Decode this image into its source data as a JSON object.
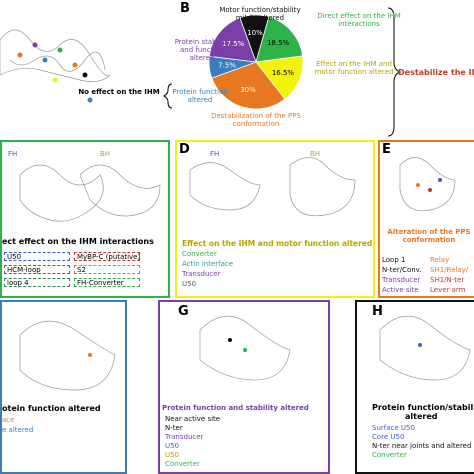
{
  "top": {
    "no_effect": "No effect on the IHM",
    "destabilize": "Destabilize the IHM"
  },
  "chart_data": {
    "type": "pie",
    "panel_label": "B",
    "categories": [
      "Motor function/stability mildly altered",
      "Direct effect on the IHM interactions",
      "Effect on the IHM and motor function altered",
      "Destabilization of the PPS conformation",
      "Protein function altered",
      "Protein stability and function altered"
    ],
    "values": [
      10,
      18.5,
      16.5,
      30,
      7.5,
      17.5
    ],
    "value_labels": [
      "10%",
      "18.5%",
      "16.5%",
      "30%",
      "7.5%",
      "17.5%"
    ],
    "colors": [
      "#111111",
      "#2db34a",
      "#f2f20a",
      "#e87722",
      "#3a7ec0",
      "#7b3fa8"
    ],
    "label_colors": [
      "#111111",
      "#2db34a",
      "#b8a400",
      "#e87722",
      "#3a7ec0",
      "#7b3fa8"
    ]
  },
  "panels": {
    "c": {
      "title": "ect effect on the IHM interactions",
      "fh": "FH",
      "bh": "BH",
      "legend": [
        {
          "text": "U50",
          "color": "#3a5fcd"
        },
        {
          "text": "HCM-loop",
          "color": "#7b3fa8"
        },
        {
          "text": "loop 4",
          "color": "#2e8b57"
        },
        {
          "text": "MyBP-C (putative)",
          "color": "#c0392b"
        },
        {
          "text": "S2",
          "color": "#e87722"
        },
        {
          "text": "FH-Converter",
          "color": "#2db34a"
        }
      ]
    },
    "d": {
      "label": "D",
      "fh": "FH",
      "bh": "BH",
      "title": "Effect on the IHM and motor function altered",
      "items": [
        {
          "text": "Converter",
          "color": "#2db34a"
        },
        {
          "text": "Actin interface",
          "color": "#2aa198"
        },
        {
          "text": "Transducer",
          "color": "#7b3fa8"
        },
        {
          "text": "U50",
          "color": "#555555"
        }
      ]
    },
    "e": {
      "label": "E",
      "title": "Alteration of the PPS conformation",
      "items": [
        {
          "text": "Loop 1",
          "color": "#111111"
        },
        {
          "text": "Relay",
          "color": "#e87722"
        },
        {
          "text": "N-ter/Conv.",
          "color": "#111111"
        },
        {
          "text": "SH1/Relay/",
          "color": "#e87722"
        },
        {
          "text": "Transducer",
          "color": "#7b3fa8"
        },
        {
          "text": "SH1/N-ter",
          "color": "#c0392b"
        },
        {
          "text": "Active site",
          "color": "#7b3fa8"
        },
        {
          "text": "Lever arm",
          "color": "#c0392b"
        }
      ]
    },
    "f": {
      "title": "otein function altered",
      "items": [
        {
          "text": "ace",
          "color": "#e87722"
        },
        {
          "text": "e altered",
          "color": "#3a7ec0"
        }
      ]
    },
    "g": {
      "label": "G",
      "title": "Protein function and stability altered",
      "items": [
        {
          "text": "Near active site",
          "color": "#111111"
        },
        {
          "text": "N-ter",
          "color": "#111111"
        },
        {
          "text": "Transducer",
          "color": "#7b3fa8"
        },
        {
          "text": "U50",
          "color": "#3a5fcd"
        },
        {
          "text": "U50",
          "color": "#b8a400"
        },
        {
          "text": "Converter",
          "color": "#2db34a"
        }
      ]
    },
    "h": {
      "label": "H",
      "title": "Protein function/stability",
      "title2": "altered",
      "items": [
        {
          "text": "Surface U50",
          "color": "#3a5fcd"
        },
        {
          "text": "Core U50",
          "color": "#3a5fcd"
        },
        {
          "text": "N-ter near joints and altered",
          "color": "#111111"
        },
        {
          "text": "Converter",
          "color": "#2db34a"
        }
      ]
    }
  }
}
